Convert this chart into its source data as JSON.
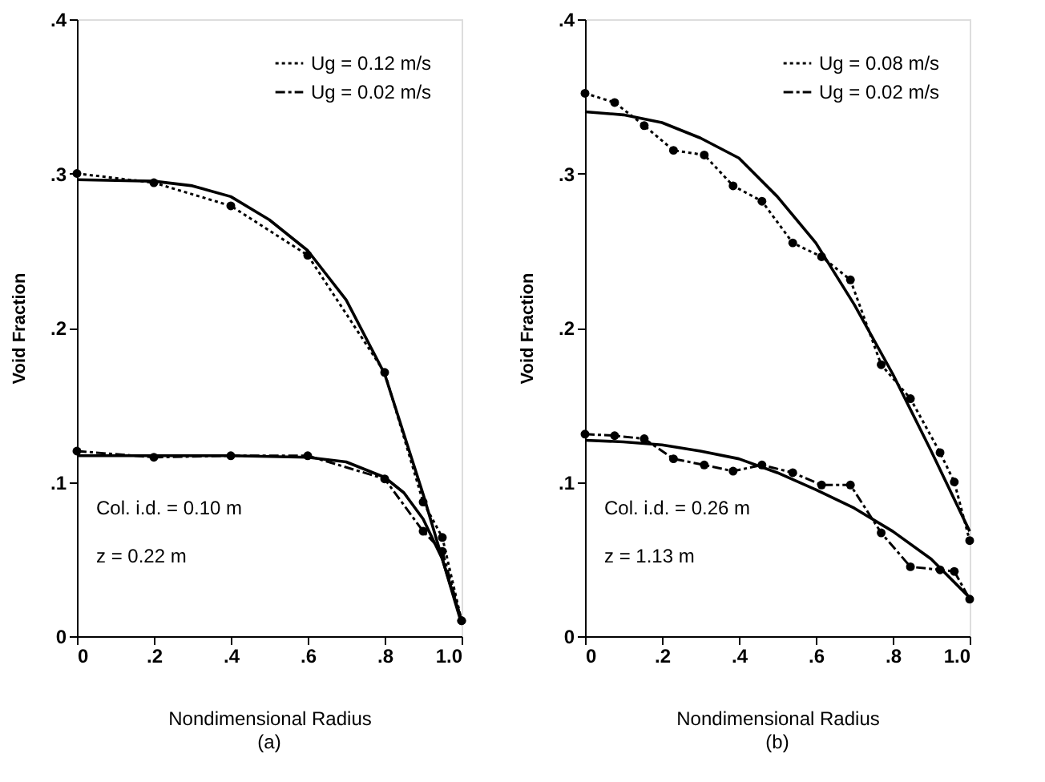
{
  "chart_data": [
    {
      "type": "line",
      "title": "(a)",
      "xlabel": "Nondimensional Radius",
      "ylabel": "Void Fraction",
      "xlim": [
        0,
        1
      ],
      "ylim": [
        0,
        0.4
      ],
      "xticks": [
        0,
        {
          "value": 0.2,
          "label": ".2"
        },
        {
          "value": 0.4,
          "label": ".4"
        },
        {
          "value": 0.6,
          "label": ".6"
        },
        {
          "value": 0.8,
          "label": ".8"
        },
        {
          "value": 1,
          "label": "1.0"
        }
      ],
      "yticks": [
        0,
        {
          "value": 0.1,
          "label": ".1"
        },
        {
          "value": 0.2,
          "label": ".2"
        },
        {
          "value": 0.3,
          "label": ".3"
        },
        {
          "value": 0.4,
          "label": ".4"
        }
      ],
      "grid": false,
      "legend": "top right",
      "annotations": [
        "Col. i.d. = 0.10 m",
        "z = 0.22 m"
      ],
      "series": [
        {
          "name": "Ug = 0.12 m/s",
          "color": "#000000",
          "line_style": "dotted",
          "marker": "circle",
          "x": [
            0,
            0.2,
            0.4,
            0.6,
            0.8,
            0.9,
            0.95,
            1.0
          ],
          "values": [
            0.3,
            0.294,
            0.279,
            0.247,
            0.171,
            0.087,
            0.064,
            0.01
          ]
        },
        {
          "name": "Ug = 0.02 m/s",
          "color": "#000000",
          "line_style": "dashed",
          "marker": "circle",
          "x": [
            0,
            0.2,
            0.4,
            0.6,
            0.8,
            0.9,
            0.95,
            1.0
          ],
          "values": [
            0.12,
            0.116,
            0.117,
            0.117,
            0.102,
            0.068,
            0.055,
            0.01
          ]
        },
        {
          "color": "#000000",
          "line_style": "solid",
          "marker": "none",
          "x": [
            0,
            0.2,
            0.3,
            0.4,
            0.5,
            0.6,
            0.7,
            0.8,
            0.9,
            0.95,
            1.0
          ],
          "values": [
            0.296,
            0.295,
            0.292,
            0.285,
            0.27,
            0.25,
            0.218,
            0.17,
            0.092,
            0.05,
            0.01
          ]
        },
        {
          "color": "#000000",
          "line_style": "solid",
          "marker": "none",
          "x": [
            0,
            0.2,
            0.4,
            0.6,
            0.7,
            0.8,
            0.85,
            0.9,
            0.95,
            1.0
          ],
          "values": [
            0.117,
            0.117,
            0.117,
            0.116,
            0.113,
            0.103,
            0.093,
            0.076,
            0.05,
            0.008
          ]
        }
      ]
    },
    {
      "type": "line",
      "title": "(b)",
      "xlabel": "Nondimensional Radius",
      "ylabel": "Void Fraction",
      "xlim": [
        0,
        1
      ],
      "ylim": [
        0,
        0.4
      ],
      "xticks": [
        0,
        {
          "value": 0.2,
          "label": ".2"
        },
        {
          "value": 0.4,
          "label": ".4"
        },
        {
          "value": 0.6,
          "label": ".6"
        },
        {
          "value": 0.8,
          "label": ".8"
        },
        {
          "value": 1,
          "label": "1.0"
        }
      ],
      "yticks": [
        0,
        {
          "value": 0.1,
          "label": ".1"
        },
        {
          "value": 0.2,
          "label": ".2"
        },
        {
          "value": 0.3,
          "label": ".3"
        },
        {
          "value": 0.4,
          "label": ".4"
        }
      ],
      "grid": false,
      "legend": "top right",
      "annotations": [
        "Col. i.d. = 0.26 m",
        "z = 1.13 m"
      ],
      "series": [
        {
          "name": "Ug = 0.08 m/s",
          "color": "#000000",
          "line_style": "dotted",
          "marker": "circle",
          "x": [
            0,
            0.077,
            0.154,
            0.23,
            0.31,
            0.385,
            0.46,
            0.54,
            0.615,
            0.69,
            0.77,
            0.846,
            0.923,
            0.96,
            1.0
          ],
          "values": [
            0.352,
            0.346,
            0.331,
            0.315,
            0.312,
            0.292,
            0.282,
            0.255,
            0.246,
            0.231,
            0.176,
            0.154,
            0.119,
            0.1,
            0.062
          ]
        },
        {
          "name": "Ug = 0.02 m/s",
          "color": "#000000",
          "line_style": "dashed",
          "marker": "circle",
          "x": [
            0,
            0.077,
            0.154,
            0.23,
            0.31,
            0.385,
            0.46,
            0.54,
            0.615,
            0.69,
            0.77,
            0.846,
            0.923,
            0.96,
            1.0
          ],
          "values": [
            0.131,
            0.13,
            0.128,
            0.115,
            0.111,
            0.107,
            0.111,
            0.106,
            0.098,
            0.098,
            0.067,
            0.045,
            0.043,
            0.042,
            0.024
          ]
        },
        {
          "color": "#000000",
          "line_style": "solid",
          "marker": "none",
          "x": [
            0,
            0.1,
            0.2,
            0.3,
            0.4,
            0.5,
            0.6,
            0.7,
            0.8,
            0.9,
            1.0
          ],
          "values": [
            0.34,
            0.338,
            0.333,
            0.323,
            0.31,
            0.285,
            0.255,
            0.215,
            0.17,
            0.12,
            0.068
          ]
        },
        {
          "color": "#000000",
          "line_style": "solid",
          "marker": "none",
          "x": [
            0,
            0.1,
            0.2,
            0.3,
            0.4,
            0.5,
            0.6,
            0.7,
            0.8,
            0.9,
            1.0
          ],
          "values": [
            0.127,
            0.126,
            0.124,
            0.12,
            0.115,
            0.106,
            0.095,
            0.083,
            0.068,
            0.05,
            0.025
          ]
        }
      ]
    }
  ]
}
